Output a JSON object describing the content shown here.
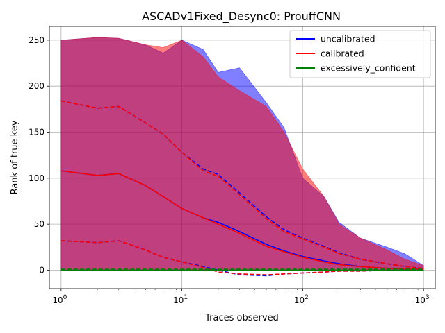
{
  "chart_data": {
    "type": "line",
    "title": "ASCADv1Fixed_Desync0: ProuffCNN",
    "xlabel": "Traces observed",
    "ylabel": "Rank of true key",
    "x_scale": "log",
    "xlim": [
      0.8,
      1250
    ],
    "ylim": [
      -20,
      265
    ],
    "grid": true,
    "legend_position": "top-right",
    "x_ticks": [
      {
        "value": 1,
        "base": "10",
        "exp": "0"
      },
      {
        "value": 10,
        "base": "10",
        "exp": "1"
      },
      {
        "value": 100,
        "base": "10",
        "exp": "2"
      },
      {
        "value": 1000,
        "base": "10",
        "exp": "3"
      }
    ],
    "y_ticks": [
      0,
      50,
      100,
      150,
      200,
      250
    ],
    "x": [
      1,
      2,
      3,
      5,
      7,
      10,
      15,
      20,
      30,
      50,
      70,
      100,
      150,
      200,
      300,
      500,
      700,
      1000
    ],
    "series": [
      {
        "name": "uncalibrated",
        "color": "#0000ff",
        "mean": [
          108,
          103,
          105,
          92,
          80,
          67,
          57,
          52,
          42,
          28,
          21,
          15,
          10,
          7,
          4,
          2,
          1.5,
          1
        ],
        "upper": [
          184,
          176,
          178,
          160,
          148,
          128,
          110,
          104,
          84,
          58,
          44,
          35,
          26,
          19,
          12,
          7,
          4,
          2
        ],
        "lower": [
          32,
          30,
          32,
          22,
          14,
          9,
          4,
          0,
          -5,
          -6,
          -4,
          -3,
          -2,
          -1,
          -1,
          0,
          0,
          0
        ],
        "band_upper": [
          250,
          253,
          252,
          245,
          236,
          250,
          240,
          215,
          220,
          182,
          155,
          100,
          80,
          52,
          35,
          25,
          18,
          5
        ],
        "band_lower": [
          0,
          0,
          0,
          0,
          0,
          0,
          0,
          0,
          0,
          0,
          0,
          0,
          0,
          0,
          0,
          0,
          0,
          0
        ]
      },
      {
        "name": "calibrated",
        "color": "#ff0000",
        "mean": [
          108,
          103,
          105,
          92,
          80,
          67,
          57,
          50,
          40,
          26,
          20,
          14,
          9,
          6,
          4,
          2,
          1.5,
          1
        ],
        "upper": [
          184,
          176,
          178,
          160,
          148,
          128,
          108,
          102,
          82,
          56,
          42,
          34,
          25,
          18,
          12,
          7,
          4,
          2
        ],
        "lower": [
          32,
          30,
          32,
          22,
          14,
          9,
          3,
          -2,
          -4,
          -5,
          -4,
          -3,
          -2,
          -1,
          -1,
          0,
          0,
          0
        ],
        "band_upper": [
          250,
          253,
          252,
          245,
          242,
          250,
          232,
          210,
          195,
          178,
          150,
          110,
          80,
          50,
          35,
          22,
          12,
          5
        ],
        "band_lower": [
          0,
          0,
          0,
          0,
          0,
          0,
          0,
          0,
          0,
          0,
          0,
          0,
          0,
          0,
          0,
          0,
          0,
          0
        ]
      },
      {
        "name": "excessively_confident",
        "color": "#008000",
        "mean": [
          0,
          0,
          0,
          0,
          0,
          0,
          0,
          0,
          0,
          0,
          0,
          0,
          0,
          0,
          0,
          0,
          0,
          0
        ],
        "upper": [
          1,
          1,
          1,
          1,
          1,
          1,
          1,
          1,
          1,
          1,
          1,
          1,
          1,
          1,
          1,
          1,
          1,
          1
        ],
        "lower": [
          0,
          0,
          0,
          0,
          0,
          0,
          0,
          0,
          0,
          0,
          0,
          0,
          0,
          0,
          0,
          0,
          0,
          0
        ]
      }
    ]
  }
}
